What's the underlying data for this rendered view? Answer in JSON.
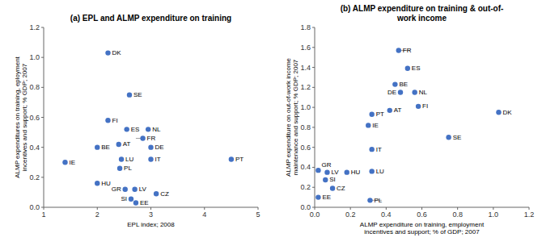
{
  "chart_data": [
    {
      "type": "scatter",
      "title": "(a) EPL and ALMP expenditure on training",
      "xlabel": "EPL index; 2008",
      "ylabel": "ALMP expenditures on training, eployment\nincentives and support; % GDP; 2007",
      "xlim": [
        1,
        5
      ],
      "ylim": [
        0,
        1.2
      ],
      "xticks": [
        1,
        2,
        3,
        4,
        5
      ],
      "yticks": [
        {
          "value": 0,
          "label": "0.0"
        },
        0.2,
        0.4,
        0.6,
        0.8,
        {
          "value": 1.0,
          "label": "1.0"
        },
        1.2
      ],
      "grid": false,
      "color": "#4472c4",
      "labels": [
        "DK",
        "SE",
        "FI",
        "ES",
        "NL",
        "FR",
        "DE",
        "AT",
        "BE",
        "IT",
        "LU",
        "PL",
        "IE",
        "PT",
        "HU",
        "GR",
        "LV",
        "CZ",
        "SI",
        "EE"
      ],
      "x": [
        2.2,
        2.6,
        2.2,
        2.55,
        2.95,
        2.85,
        3.0,
        2.4,
        2.0,
        3.0,
        2.45,
        2.42,
        1.4,
        4.5,
        2.0,
        2.52,
        2.7,
        3.1,
        2.63,
        2.72
      ],
      "values": [
        1.03,
        0.75,
        0.58,
        0.52,
        0.52,
        0.46,
        0.4,
        0.42,
        0.4,
        0.32,
        0.32,
        0.26,
        0.3,
        0.32,
        0.16,
        0.12,
        0.12,
        0.09,
        0.055,
        0.03
      ],
      "connectors": [
        {
          "x0": 2.85,
          "y0": 0.46,
          "x1": 2.72,
          "y1": 0.46
        }
      ]
    },
    {
      "type": "scatter",
      "title": "(b) ALMP expenditure on training & out-of-\nwork income",
      "xlabel": "ALMP expenditure on training, employment\nincentives and support; % of GDP; 2007",
      "ylabel": "ALMP expenditure on out-of-work income\nmaintenance and support; % GDP; 2007",
      "xlim": [
        0,
        1.2
      ],
      "ylim": [
        0,
        1.8
      ],
      "xticks": [
        {
          "value": 0,
          "label": "0.0"
        },
        0.2,
        0.4,
        0.6,
        0.8,
        {
          "value": 1.0,
          "label": "1.0"
        },
        1.2
      ],
      "yticks": [
        {
          "value": 0,
          "label": "0.0"
        },
        0.2,
        0.4,
        0.6,
        0.8,
        {
          "value": 1.0,
          "label": "1.0"
        },
        1.2,
        1.4,
        1.6,
        1.8
      ],
      "grid": false,
      "color": "#4472c4",
      "labels": [
        "FR",
        "ES",
        "BE",
        "DE",
        "NL",
        "FI",
        "DK",
        "PT",
        "AT",
        "IE",
        "SE",
        "IT",
        "GR",
        "LV",
        "SI",
        "HU",
        "LU",
        "CZ",
        "EE",
        "PL"
      ],
      "x": [
        0.47,
        0.52,
        0.45,
        0.48,
        0.56,
        0.58,
        1.03,
        0.32,
        0.42,
        0.3,
        0.75,
        0.32,
        0.02,
        0.07,
        0.06,
        0.18,
        0.32,
        0.1,
        0.02,
        0.31
      ],
      "values": [
        1.57,
        1.39,
        1.23,
        1.15,
        1.15,
        1.01,
        0.95,
        0.93,
        0.97,
        0.82,
        0.7,
        0.58,
        0.37,
        0.35,
        0.275,
        0.35,
        0.36,
        0.19,
        0.1,
        0.07
      ],
      "connectors": [
        {
          "x0": 0.47,
          "y0": 1.57,
          "x1": 0.535,
          "y1": 1.57
        },
        {
          "x0": 0.31,
          "y0": 0.07,
          "x1": 0.375,
          "y1": 0.07
        }
      ]
    }
  ]
}
